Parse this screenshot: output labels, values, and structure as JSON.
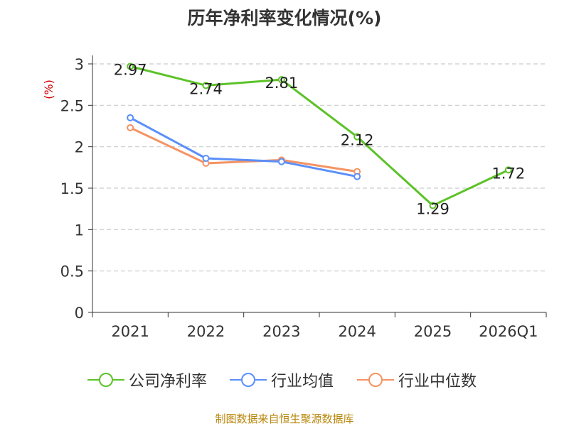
{
  "chart_data": {
    "type": "line",
    "title": "历年净利率变化情况(%)",
    "ylabel": "(%)",
    "xlabel": "",
    "categories": [
      "2021",
      "2022",
      "2023",
      "2024",
      "2025",
      "2026Q1"
    ],
    "ylim": [
      0,
      3
    ],
    "yticks": [
      "0",
      "0.5",
      "1",
      "1.5",
      "2",
      "2.5",
      "3"
    ],
    "ytick_values": [
      0,
      0.5,
      1,
      1.5,
      2,
      2.5,
      3
    ],
    "series": [
      {
        "name": "公司净利率",
        "color": "#5bc227",
        "values": [
          2.97,
          2.74,
          2.81,
          2.12,
          1.29,
          1.72
        ],
        "labels": [
          "2.97",
          "2.74",
          "2.81",
          "2.12",
          "1.29",
          "1.72"
        ]
      },
      {
        "name": "行业均值",
        "color": "#5b8ff9",
        "values": [
          2.35,
          1.86,
          1.82,
          1.64,
          null,
          null
        ]
      },
      {
        "name": "行业中位数",
        "color": "#f59363",
        "values": [
          2.23,
          1.8,
          1.84,
          1.7,
          null,
          null
        ]
      }
    ],
    "source": "制图数据来自恒生聚源数据库"
  }
}
